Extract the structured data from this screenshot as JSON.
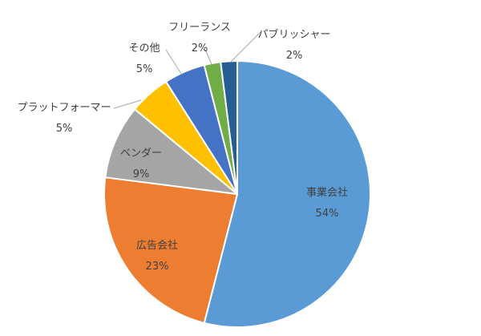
{
  "chart_data": {
    "type": "pie",
    "start_angle_deg": 0,
    "direction": "clockwise",
    "grid": false,
    "legend": "none",
    "slices": [
      {
        "name": "事業会社",
        "value": 54,
        "label": "54%",
        "color": "#5b9bd5"
      },
      {
        "name": "広告会社",
        "value": 23,
        "label": "23%",
        "color": "#ed7d31"
      },
      {
        "name": "ベンダー",
        "value": 9,
        "label": "9%",
        "color": "#a5a5a5"
      },
      {
        "name": "プラットフォーマー",
        "value": 5,
        "label": "5%",
        "color": "#ffc000"
      },
      {
        "name": "その他",
        "value": 5,
        "label": "5%",
        "color": "#4472c4"
      },
      {
        "name": "フリーランス",
        "value": 2,
        "label": "2%",
        "color": "#70ad47"
      },
      {
        "name": "パブリッシャー",
        "value": 2,
        "label": "2%",
        "color": "#255e91"
      }
    ]
  }
}
